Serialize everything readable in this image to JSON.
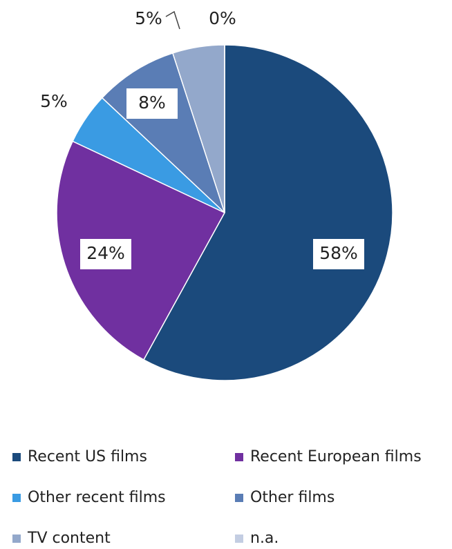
{
  "chart_data": {
    "type": "pie",
    "categories": [
      "Recent US films",
      "Recent European films",
      "Other recent films",
      "Other films",
      "TV content",
      "n.a."
    ],
    "values": [
      58,
      24,
      5,
      8,
      5,
      0
    ],
    "value_labels": [
      "58%",
      "24%",
      "5%",
      "8%",
      "5%",
      "0%"
    ],
    "colors": [
      "#1b4a7c",
      "#7030a0",
      "#3a9be3",
      "#5a7db5",
      "#93a8cb",
      "#c3cde2"
    ],
    "legend": "bottom"
  }
}
